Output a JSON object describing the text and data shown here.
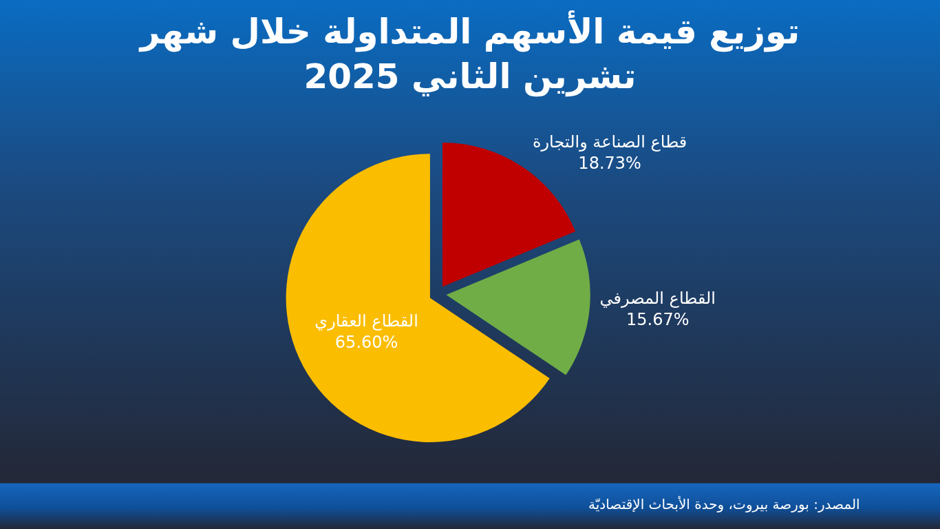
{
  "chart_data": {
    "type": "pie",
    "title": "توزيع قيمة الأسهم المتداولة خلال شهر\nتشرين الثاني 2025",
    "categories": [
      "قطاع الصناعة والتجارة",
      "القطاع المصرفي",
      "القطاع العقاري"
    ],
    "values": [
      18.73,
      15.67,
      65.6
    ],
    "colors": [
      "#c00000",
      "#70ad47",
      "#fbbd00"
    ],
    "value_labels": [
      "18.73%",
      "15.67%",
      "65.60%"
    ],
    "annotations": [
      "المصدر: بورصة بيروت، وحدة الأبحاث الإقتصاديّة"
    ]
  }
}
